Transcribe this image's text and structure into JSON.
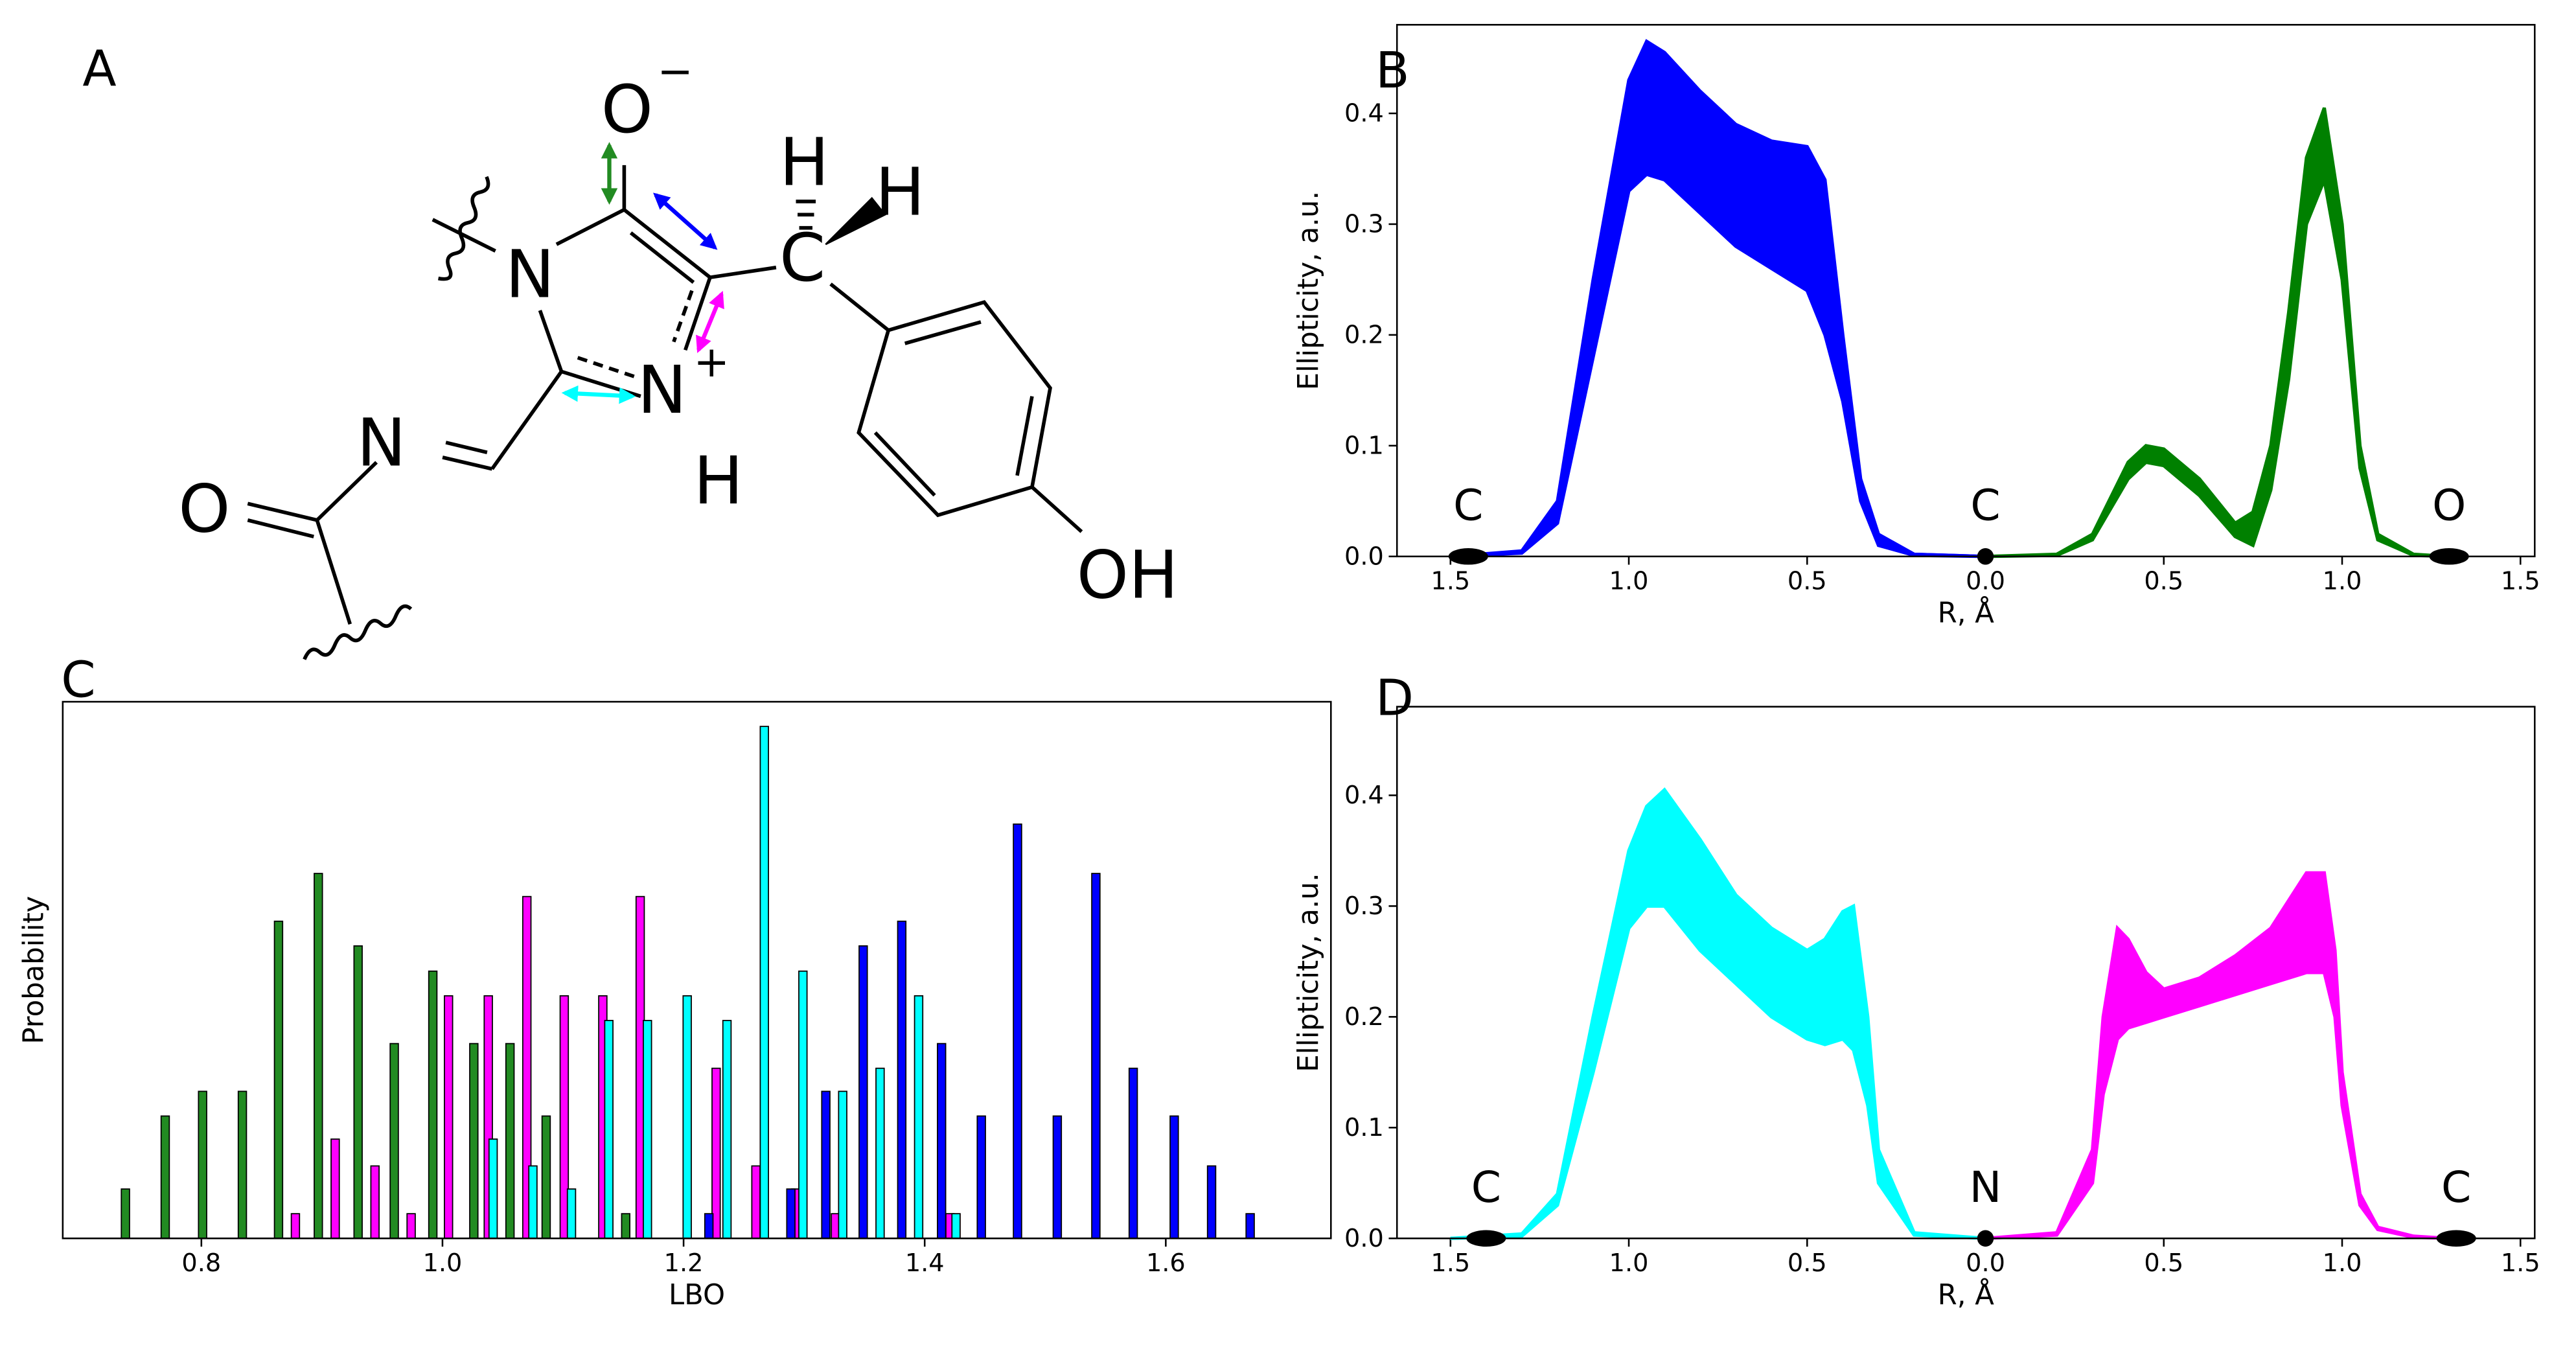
{
  "structure": {
    "panel": "A",
    "labels": [
      "O",
      "−",
      "N",
      "N",
      "+",
      "H",
      "C",
      "H",
      "H",
      "N",
      "O",
      "OH"
    ]
  },
  "chart_data": [
    {
      "panel": "B",
      "type": "line",
      "xlabel": "R, Å",
      "ylabel": "Ellipticity, a.u.",
      "xlim": [
        -1.65,
        1.54
      ],
      "ylim": [
        0,
        0.48
      ],
      "xticks": [
        {
          "value": -1.5,
          "label": "1.5"
        },
        {
          "value": -1,
          "label": "1.0"
        },
        {
          "value": -0.5,
          "label": "0.5"
        },
        {
          "value": 0,
          "label": "0.0"
        },
        0.5,
        {
          "value": 1,
          "label": "1.0"
        },
        1.5
      ],
      "yticks": [
        {
          "value": 0,
          "label": "0.0"
        },
        0.1,
        0.2,
        0.3,
        0.4
      ],
      "series": [
        {
          "color": "#0000ff",
          "x": [
            -1.5,
            -1.3,
            -1.2,
            -1.1,
            -1.0,
            -0.95,
            -0.9,
            -0.8,
            -0.7,
            -0.6,
            -0.5,
            -0.45,
            -0.4,
            -0.35,
            -0.3,
            -0.2,
            0
          ],
          "values": [
            0,
            0.005,
            0.05,
            0.25,
            0.43,
            0.465,
            0.455,
            0.42,
            0.39,
            0.375,
            0.37,
            0.34,
            0.2,
            0.07,
            0.02,
            0.002,
            0
          ]
        },
        {
          "color": "#0000ff",
          "x": [
            -1.5,
            -1.3,
            -1.2,
            -1.1,
            -1.0,
            -0.95,
            -0.9,
            -0.8,
            -0.7,
            -0.6,
            -0.5,
            -0.45,
            -0.4,
            -0.35,
            -0.3,
            -0.2,
            0
          ],
          "values": [
            0,
            0.004,
            0.04,
            0.22,
            0.38,
            0.4,
            0.395,
            0.36,
            0.33,
            0.315,
            0.3,
            0.28,
            0.18,
            0.06,
            0.015,
            0.002,
            0
          ]
        },
        {
          "color": "#0000ff",
          "x": [
            -1.5,
            -1.3,
            -1.2,
            -1.1,
            -1.0,
            -0.95,
            -0.9,
            -0.8,
            -0.7,
            -0.6,
            -0.5,
            -0.45,
            -0.4,
            -0.35,
            -0.3,
            -0.2,
            0
          ],
          "values": [
            0,
            0.003,
            0.03,
            0.18,
            0.33,
            0.345,
            0.34,
            0.31,
            0.28,
            0.26,
            0.24,
            0.2,
            0.14,
            0.05,
            0.01,
            0.001,
            0
          ]
        },
        {
          "color": "#008000",
          "x": [
            0,
            0.2,
            0.3,
            0.4,
            0.45,
            0.5,
            0.6,
            0.7,
            0.75,
            0.8,
            0.85,
            0.9,
            0.95,
            1.0,
            1.05,
            1.1,
            1.2,
            1.3
          ],
          "values": [
            0,
            0.002,
            0.02,
            0.085,
            0.1,
            0.097,
            0.07,
            0.03,
            0.04,
            0.1,
            0.22,
            0.36,
            0.405,
            0.3,
            0.1,
            0.02,
            0.002,
            0
          ]
        },
        {
          "color": "#008000",
          "x": [
            0,
            0.2,
            0.3,
            0.4,
            0.45,
            0.5,
            0.6,
            0.7,
            0.75,
            0.8,
            0.85,
            0.9,
            0.95,
            1.0,
            1.05,
            1.1,
            1.2,
            1.3
          ],
          "values": [
            0,
            0.001,
            0.015,
            0.07,
            0.085,
            0.082,
            0.055,
            0.018,
            0.01,
            0.06,
            0.16,
            0.3,
            0.34,
            0.25,
            0.08,
            0.015,
            0.001,
            0
          ]
        }
      ],
      "atoms": [
        {
          "label": "C",
          "x": -1.45
        },
        {
          "label": "C",
          "x": 0
        },
        {
          "label": "O",
          "x": 1.3
        }
      ]
    },
    {
      "panel": "C",
      "type": "bar",
      "xlabel": "LBO",
      "ylabel": "Probability",
      "xlim": [
        0.685,
        1.737
      ],
      "ylim": [
        0,
        1
      ],
      "xticks": [
        0.8,
        {
          "value": 1,
          "label": "1.0"
        },
        1.2,
        1.4,
        1.6
      ],
      "series": [
        {
          "color": "#228b22",
          "x": [
            0.737,
            0.77,
            0.801,
            0.834,
            0.864,
            0.897,
            0.93,
            0.96,
            0.992,
            1.026,
            1.056,
            1.086,
            1.152
          ],
          "values": [
            0.092,
            0.228,
            0.274,
            0.274,
            0.591,
            0.68,
            0.545,
            0.363,
            0.498,
            0.363,
            0.363,
            0.228,
            0.046
          ]
        },
        {
          "color": "#ff00ff",
          "x": [
            0.878,
            0.911,
            0.944,
            0.974,
            1.005,
            1.038,
            1.07,
            1.101,
            1.133,
            1.164,
            1.227,
            1.26,
            1.293,
            1.326,
            1.421
          ],
          "values": [
            0.046,
            0.185,
            0.135,
            0.046,
            0.452,
            0.452,
            0.637,
            0.452,
            0.452,
            0.637,
            0.317,
            0.135,
            0.092,
            0.046,
            0.046
          ]
        },
        {
          "color": "#00ffff",
          "x": [
            1.042,
            1.075,
            1.107,
            1.138,
            1.17,
            1.203,
            1.236,
            1.267,
            1.299,
            1.332,
            1.363,
            1.395,
            1.426
          ],
          "values": [
            0.185,
            0.135,
            0.092,
            0.406,
            0.406,
            0.452,
            0.406,
            0.954,
            0.498,
            0.274,
            0.317,
            0.452,
            0.046
          ]
        },
        {
          "color": "#0000ff",
          "x": [
            1.221,
            1.289,
            1.318,
            1.349,
            1.381,
            1.414,
            1.447,
            1.477,
            1.51,
            1.542,
            1.573,
            1.607,
            1.638,
            1.67
          ],
          "values": [
            0.046,
            0.092,
            0.274,
            0.545,
            0.591,
            0.363,
            0.228,
            0.772,
            0.228,
            0.68,
            0.317,
            0.228,
            0.135,
            0.046
          ]
        }
      ]
    },
    {
      "panel": "D",
      "type": "line",
      "xlabel": "R, Å",
      "ylabel": "Ellipticity, a.u.",
      "xlim": [
        -1.65,
        1.54
      ],
      "ylim": [
        0,
        0.48
      ],
      "xticks": [
        {
          "value": -1.5,
          "label": "1.5"
        },
        {
          "value": -1,
          "label": "1.0"
        },
        {
          "value": -0.5,
          "label": "0.5"
        },
        {
          "value": 0,
          "label": "0.0"
        },
        0.5,
        {
          "value": 1,
          "label": "1.0"
        },
        1.5
      ],
      "yticks": [
        {
          "value": 0,
          "label": "0.0"
        },
        0.1,
        0.2,
        0.3,
        0.4
      ],
      "series": [
        {
          "color": "#00ffff",
          "x": [
            -1.5,
            -1.3,
            -1.2,
            -1.1,
            -1.0,
            -0.95,
            -0.9,
            -0.8,
            -0.7,
            -0.6,
            -0.5,
            -0.45,
            -0.4,
            -0.37,
            -0.33,
            -0.3,
            -0.2,
            0
          ],
          "values": [
            0,
            0.004,
            0.04,
            0.2,
            0.35,
            0.39,
            0.405,
            0.36,
            0.31,
            0.28,
            0.26,
            0.27,
            0.295,
            0.3,
            0.2,
            0.08,
            0.005,
            0
          ]
        },
        {
          "color": "#00ffff",
          "x": [
            -1.5,
            -1.3,
            -1.2,
            -1.1,
            -1.0,
            -0.95,
            -0.9,
            -0.8,
            -0.7,
            -0.6,
            -0.5,
            -0.45,
            -0.4,
            -0.37,
            -0.33,
            -0.3,
            -0.2,
            0
          ],
          "values": [
            0,
            0.002,
            0.03,
            0.15,
            0.28,
            0.3,
            0.3,
            0.26,
            0.23,
            0.2,
            0.18,
            0.175,
            0.18,
            0.17,
            0.12,
            0.05,
            0.003,
            0
          ]
        },
        {
          "color": "#ff00ff",
          "x": [
            0,
            0.2,
            0.3,
            0.33,
            0.37,
            0.4,
            0.45,
            0.5,
            0.6,
            0.7,
            0.8,
            0.9,
            0.95,
            0.98,
            1.0,
            1.05,
            1.1,
            1.2,
            1.3
          ],
          "values": [
            0,
            0.005,
            0.08,
            0.2,
            0.28,
            0.27,
            0.24,
            0.225,
            0.235,
            0.255,
            0.28,
            0.33,
            0.33,
            0.26,
            0.15,
            0.04,
            0.01,
            0.002,
            0
          ]
        },
        {
          "color": "#ff00ff",
          "x": [
            0,
            0.2,
            0.3,
            0.33,
            0.37,
            0.4,
            0.45,
            0.5,
            0.6,
            0.7,
            0.8,
            0.9,
            0.95,
            0.98,
            1.0,
            1.05,
            1.1,
            1.2,
            1.3
          ],
          "values": [
            0,
            0.003,
            0.05,
            0.13,
            0.18,
            0.19,
            0.195,
            0.2,
            0.21,
            0.22,
            0.23,
            0.24,
            0.24,
            0.2,
            0.12,
            0.03,
            0.008,
            0.001,
            0
          ]
        }
      ],
      "atoms": [
        {
          "label": "C",
          "x": -1.4
        },
        {
          "label": "N",
          "x": 0
        },
        {
          "label": "C",
          "x": 1.32
        }
      ]
    }
  ]
}
